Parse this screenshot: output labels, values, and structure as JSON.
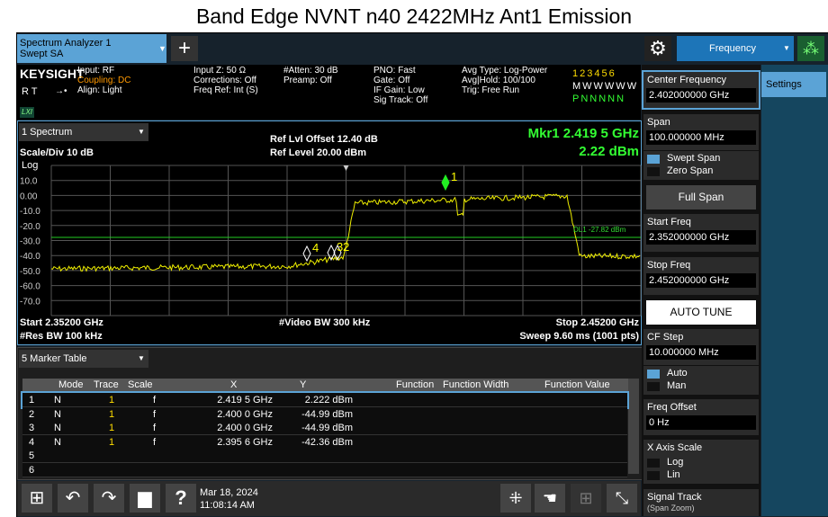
{
  "title": "Band Edge NVNT n40 2422MHz Ant1 Emission",
  "topbar": {
    "tab_line1": "Spectrum Analyzer 1",
    "tab_line2": "Swept SA",
    "menu": "Frequency"
  },
  "info": {
    "brand": "KEYSIGHT",
    "lxi": "LXI",
    "mode": "R T",
    "col1": [
      "Input: RF",
      "Coupling: DC",
      "Align: Light"
    ],
    "col2": [
      "Input Z: 50 Ω",
      "Corrections: Off",
      "Freq Ref: Int (S)"
    ],
    "col3": [
      "#Atten: 30 dB",
      "Preamp: Off"
    ],
    "col4": [
      "PNO: Fast",
      "Gate: Off",
      "IF Gain: Low",
      "Sig Track: Off"
    ],
    "col5": [
      "Avg Type: Log-Power",
      "Avg|Hold: 100/100",
      "Trig: Free Run"
    ],
    "traces": [
      "123456",
      "MWWWWW",
      "PNNNNN"
    ]
  },
  "graph": {
    "window": "1 Spectrum",
    "scale": "Scale/Div 10 dB",
    "log": "Log",
    "ref_offset": "Ref Lvl Offset 12.40 dB",
    "ref_level": "Ref Level 20.00 dBm",
    "marker_freq": "Mkr1  2.419 5 GHz",
    "marker_amp": "2.22 dBm",
    "y_labels": [
      "10.0",
      "0.00",
      "-10.0",
      "-20.0",
      "-30.0",
      "-40.0",
      "-50.0",
      "-60.0",
      "-70.0"
    ],
    "display_line": "DL1 -27.82 dBm",
    "markers": [
      "1",
      "2",
      "3",
      "4"
    ],
    "start": "Start 2.35200 GHz",
    "rbw": "#Res BW 100 kHz",
    "vbw": "#Video BW 300 kHz",
    "stop": "Stop 2.45200 GHz",
    "sweep": "Sweep 9.60 ms (1001 pts)"
  },
  "table": {
    "window": "5 Marker Table",
    "headers": [
      "Mode",
      "Trace",
      "Scale",
      "X",
      "Y",
      "Function",
      "Function Width",
      "Function Value"
    ],
    "rows": [
      [
        "1",
        "N",
        "1",
        "f",
        "2.419 5 GHz",
        "2.222 dBm"
      ],
      [
        "2",
        "N",
        "1",
        "f",
        "2.400 0 GHz",
        "-44.99 dBm"
      ],
      [
        "3",
        "N",
        "1",
        "f",
        "2.400 0 GHz",
        "-44.99 dBm"
      ],
      [
        "4",
        "N",
        "1",
        "f",
        "2.395 6 GHz",
        "-42.36 dBm"
      ],
      [
        "5"
      ],
      [
        "6"
      ]
    ]
  },
  "menu": {
    "settings": "Settings",
    "center_label": "Center Frequency",
    "center_value": "2.402000000 GHz",
    "span_label": "Span",
    "span_value": "100.000000 MHz",
    "swept_span": "Swept Span",
    "zero_span": "Zero Span",
    "full_span": "Full Span",
    "start_label": "Start Freq",
    "start_value": "2.352000000 GHz",
    "stop_label": "Stop Freq",
    "stop_value": "2.452000000 GHz",
    "auto_tune": "AUTO TUNE",
    "cf_label": "CF Step",
    "cf_value": "10.000000 MHz",
    "auto": "Auto",
    "man": "Man",
    "offset_label": "Freq Offset",
    "offset_value": "0 Hz",
    "xscale_label": "X Axis Scale",
    "log": "Log",
    "lin": "Lin",
    "track_label": "Signal Track",
    "track_sub": "(Span Zoom)"
  },
  "taskbar": {
    "date": "Mar 18, 2024",
    "time": "11:08:14 AM"
  }
}
